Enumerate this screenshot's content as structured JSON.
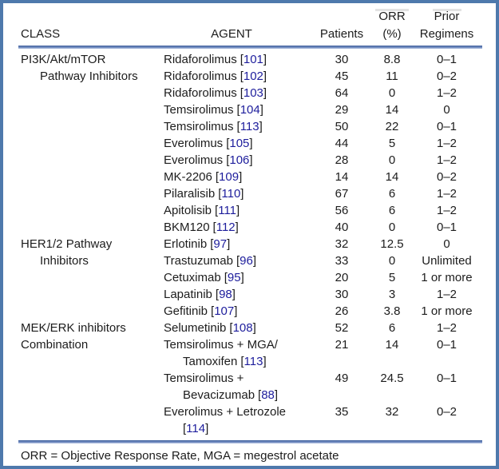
{
  "formatting": {
    "bracket_open": "[",
    "bracket_close": "]"
  },
  "colors": {
    "frame_border": "#4e79ac",
    "rule_dark": "#40609d",
    "rule_light": "#b6c4e2",
    "citation": "#1d1d9c",
    "text": "#1c1c1c"
  },
  "header": {
    "row1": {
      "orr_top": "ORR",
      "prior_top": "Prior"
    },
    "row2": {
      "class": "CLASS",
      "agent": "AGENT",
      "patients": "Patients",
      "orr_pct": "(%)",
      "regimens": "Regimens"
    }
  },
  "table": {
    "lines": [
      {
        "cls": "PI3K/Akt/mTOR",
        "cls_indent": false,
        "agent": "Ridaforolimus",
        "cite": "101",
        "agent_indent": false,
        "patients": "30",
        "orr": "8.8",
        "prior": "0–1"
      },
      {
        "cls": "Pathway Inhibitors",
        "cls_indent": true,
        "agent": "Ridaforolimus",
        "cite": "102",
        "agent_indent": false,
        "patients": "45",
        "orr": "11",
        "prior": "0–2"
      },
      {
        "cls": "",
        "cls_indent": false,
        "agent": "Ridaforolimus",
        "cite": "103",
        "agent_indent": false,
        "patients": "64",
        "orr": "0",
        "prior": "1–2"
      },
      {
        "cls": "",
        "cls_indent": false,
        "agent": "Temsirolimus",
        "cite": "104",
        "agent_indent": false,
        "patients": "29",
        "orr": "14",
        "prior": "0"
      },
      {
        "cls": "",
        "cls_indent": false,
        "agent": "Temsirolimus",
        "cite": "113",
        "agent_indent": false,
        "patients": "50",
        "orr": "22",
        "prior": "0–1"
      },
      {
        "cls": "",
        "cls_indent": false,
        "agent": "Everolimus",
        "cite": "105",
        "agent_indent": false,
        "patients": "44",
        "orr": "5",
        "prior": "1–2"
      },
      {
        "cls": "",
        "cls_indent": false,
        "agent": "Everolimus",
        "cite": "106",
        "agent_indent": false,
        "patients": "28",
        "orr": "0",
        "prior": "1–2"
      },
      {
        "cls": "",
        "cls_indent": false,
        "agent": "MK-2206",
        "cite": "109",
        "agent_indent": false,
        "patients": "14",
        "orr": "14",
        "prior": "0–2"
      },
      {
        "cls": "",
        "cls_indent": false,
        "agent": "Pilaralisib",
        "cite": "110",
        "agent_indent": false,
        "patients": "67",
        "orr": "6",
        "prior": "1–2"
      },
      {
        "cls": "",
        "cls_indent": false,
        "agent": "Apitolisib",
        "cite": "111",
        "agent_indent": false,
        "patients": "56",
        "orr": "6",
        "prior": "1–2"
      },
      {
        "cls": "",
        "cls_indent": false,
        "agent": "BKM120",
        "cite": "112",
        "agent_indent": false,
        "patients": "40",
        "orr": "0",
        "prior": "0–1"
      },
      {
        "cls": "HER1/2 Pathway",
        "cls_indent": false,
        "agent": "Erlotinib",
        "cite": "97",
        "agent_indent": false,
        "patients": "32",
        "orr": "12.5",
        "prior": "0"
      },
      {
        "cls": "Inhibitors",
        "cls_indent": true,
        "agent": "Trastuzumab",
        "cite": "96",
        "agent_indent": false,
        "patients": "33",
        "orr": "0",
        "prior": "Unlimited"
      },
      {
        "cls": "",
        "cls_indent": false,
        "agent": "Cetuximab",
        "cite": "95",
        "agent_indent": false,
        "patients": "20",
        "orr": "5",
        "prior": "1 or more"
      },
      {
        "cls": "",
        "cls_indent": false,
        "agent": "Lapatinib",
        "cite": "98",
        "agent_indent": false,
        "patients": "30",
        "orr": "3",
        "prior": "1–2"
      },
      {
        "cls": "",
        "cls_indent": false,
        "agent": "Gefitinib",
        "cite": "107",
        "agent_indent": false,
        "patients": "26",
        "orr": "3.8",
        "prior": "1 or more"
      },
      {
        "cls": "MEK/ERK inhibitors",
        "cls_indent": false,
        "agent": "Selumetinib",
        "cite": "108",
        "agent_indent": false,
        "patients": "52",
        "orr": "6",
        "prior": "1–2"
      },
      {
        "cls": "Combination",
        "cls_indent": false,
        "agent": "Temsirolimus + MGA/",
        "cite": "",
        "agent_indent": false,
        "patients": "21",
        "orr": "14",
        "prior": "0–1"
      },
      {
        "cls": "",
        "cls_indent": false,
        "agent": "Tamoxifen",
        "cite": "113",
        "agent_indent": true,
        "patients": "",
        "orr": "",
        "prior": ""
      },
      {
        "cls": "",
        "cls_indent": false,
        "agent": "Temsirolimus +",
        "cite": "",
        "agent_indent": false,
        "patients": "49",
        "orr": "24.5",
        "prior": "0–1"
      },
      {
        "cls": "",
        "cls_indent": false,
        "agent": "Bevacizumab",
        "cite": "88",
        "agent_indent": true,
        "patients": "",
        "orr": "",
        "prior": ""
      },
      {
        "cls": "",
        "cls_indent": false,
        "agent": "Everolimus + Letrozole",
        "cite": "",
        "agent_indent": false,
        "patients": "35",
        "orr": "32",
        "prior": "0–2"
      },
      {
        "cls": "",
        "cls_indent": false,
        "agent": "",
        "cite": "114",
        "agent_indent": true,
        "patients": "",
        "orr": "",
        "prior": ""
      }
    ]
  },
  "footnote": "ORR = Objective Response Rate, MGA = megestrol acetate"
}
